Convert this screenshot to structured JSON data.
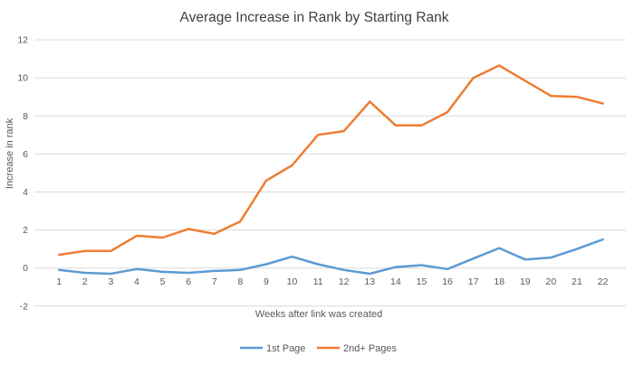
{
  "chart_data": {
    "type": "line",
    "title": "Average Increase in Rank by Starting Rank",
    "xlabel": "Weeks after link was created",
    "ylabel": "Increase in rank",
    "categories": [
      "1",
      "2",
      "3",
      "4",
      "5",
      "6",
      "7",
      "8",
      "9",
      "10",
      "11",
      "12",
      "13",
      "14",
      "15",
      "16",
      "17",
      "18",
      "19",
      "20",
      "21",
      "22"
    ],
    "series": [
      {
        "name": "1st Page",
        "color": "#5B9BD5",
        "values": [
          -0.1,
          -0.25,
          -0.3,
          -0.05,
          -0.2,
          -0.25,
          -0.15,
          -0.1,
          0.2,
          0.6,
          0.2,
          -0.1,
          -0.3,
          0.05,
          0.15,
          -0.05,
          0.5,
          1.05,
          0.45,
          0.55,
          1.0,
          1.5
        ]
      },
      {
        "name": "2nd+ Pages",
        "color": "#ED7D31",
        "values": [
          0.7,
          0.9,
          0.9,
          1.7,
          1.6,
          2.05,
          1.8,
          2.45,
          4.6,
          5.4,
          7.0,
          7.2,
          8.75,
          7.5,
          7.5,
          8.2,
          10.0,
          10.65,
          9.85,
          9.05,
          9.0,
          8.65
        ]
      }
    ],
    "ylim": [
      -2,
      12
    ],
    "yticks": [
      12,
      10,
      8,
      6,
      4,
      2,
      0,
      -2
    ],
    "grid": true,
    "legend_position": "bottom"
  },
  "colors": {
    "gridline": "#D9D9D9",
    "title_text": "#404040",
    "axis_text": "#595959",
    "background": "#FFFFFF"
  }
}
